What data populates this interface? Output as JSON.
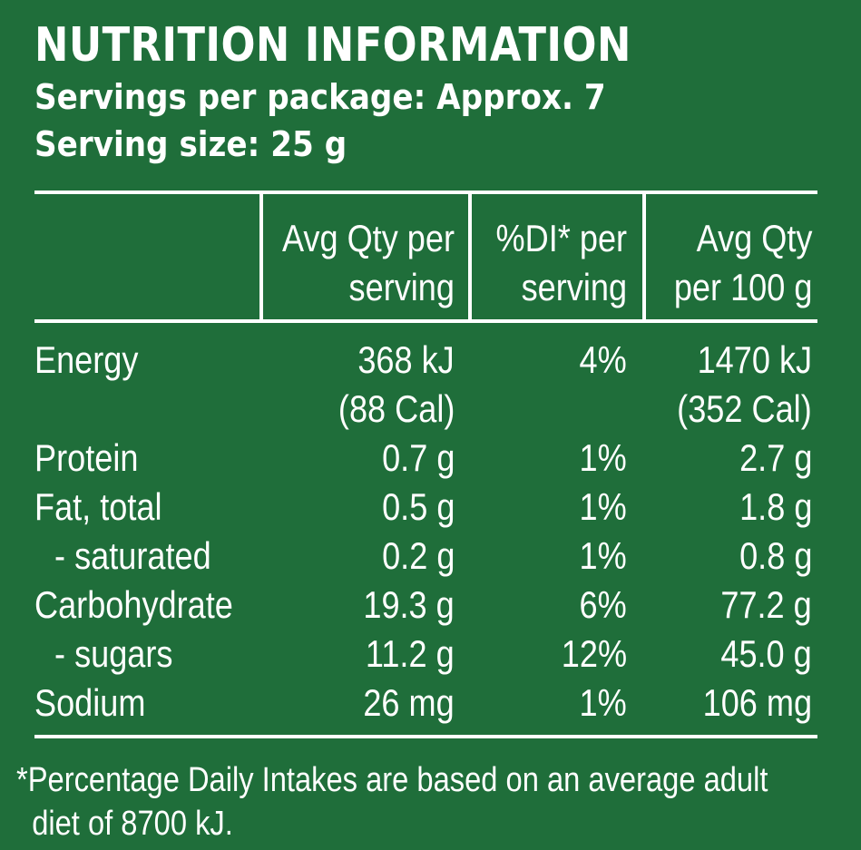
{
  "panel": {
    "title": "NUTRITION INFORMATION",
    "servings_per_package": "Servings per package: Approx. 7",
    "serving_size": "Serving size: 25 g",
    "background_color": "#1f6e3a",
    "text_color": "#ffffff"
  },
  "table": {
    "headers": [
      "",
      [
        "Avg Qty per",
        "serving"
      ],
      [
        "%DI* per",
        "serving"
      ],
      [
        "Avg Qty",
        "per 100 g"
      ]
    ],
    "rows": [
      {
        "label": "Energy",
        "per_serving": [
          "368 kJ",
          "(88 Cal)"
        ],
        "di": "4%",
        "per_100g": [
          "1470 kJ",
          "(352 Cal)"
        ]
      },
      {
        "label": "Protein",
        "per_serving": [
          "0.7 g"
        ],
        "di": "1%",
        "per_100g": [
          "2.7 g"
        ]
      },
      {
        "label": "Fat, total",
        "per_serving": [
          "0.5 g"
        ],
        "di": "1%",
        "per_100g": [
          "1.8 g"
        ]
      },
      {
        "label": "- saturated",
        "per_serving": [
          "0.2 g"
        ],
        "di": "1%",
        "per_100g": [
          "0.8 g"
        ]
      },
      {
        "label": "Carbohydrate",
        "per_serving": [
          "19.3 g"
        ],
        "di": "6%",
        "per_100g": [
          "77.2 g"
        ]
      },
      {
        "label": "- sugars",
        "per_serving": [
          "11.2 g"
        ],
        "di": "12%",
        "per_100g": [
          "45.0 g"
        ]
      },
      {
        "label": "Sodium",
        "per_serving": [
          "26 mg"
        ],
        "di": "1%",
        "per_100g": [
          "106 mg"
        ]
      }
    ]
  },
  "footnote": {
    "line1": "*Percentage Daily Intakes are based on an average adult",
    "line2": "diet of 8700 kJ."
  }
}
